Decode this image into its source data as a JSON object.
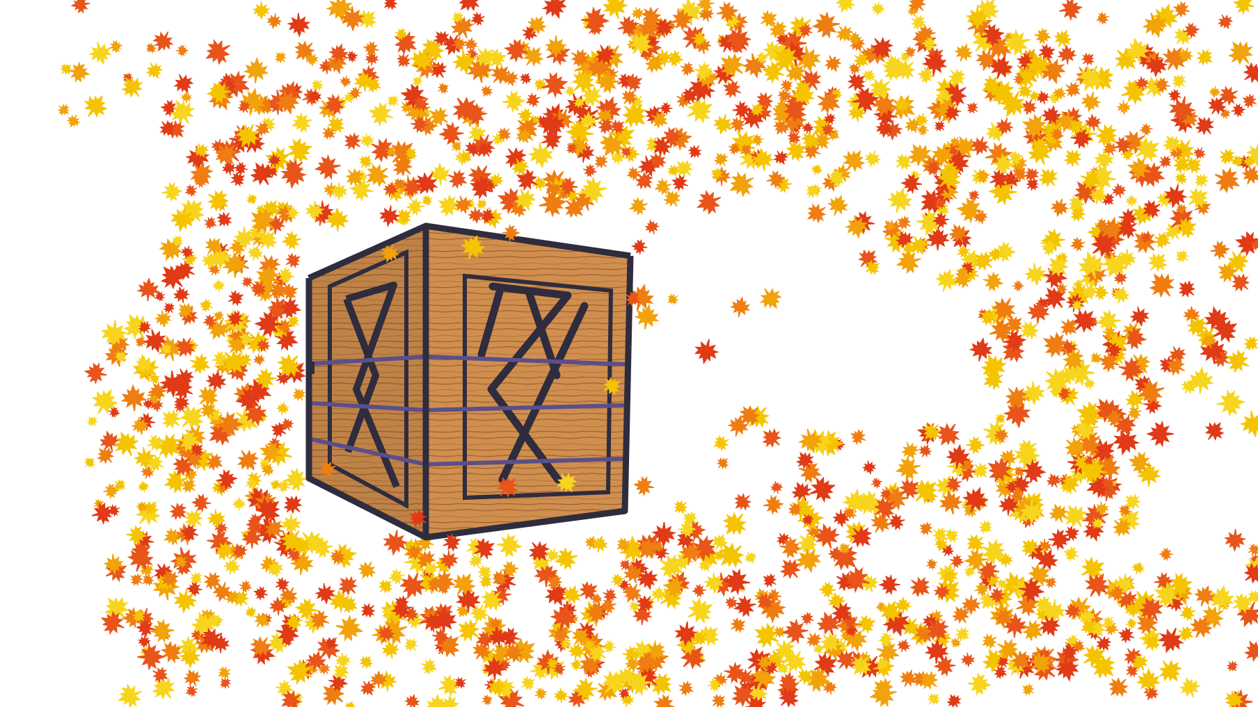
{
  "scene": {
    "background_color": "#ffffff",
    "leaf_colors": [
      "#f5c400",
      "#f2a20a",
      "#ef7d12",
      "#e8541a",
      "#e03a16",
      "#f7d51e"
    ],
    "crate": {
      "frame_color": "#2f2c3e",
      "band_color": "#5b4f8a",
      "wood_light": "#d79a5a",
      "wood_mid": "#c07a3e",
      "wood_dark": "#8a5228"
    }
  }
}
